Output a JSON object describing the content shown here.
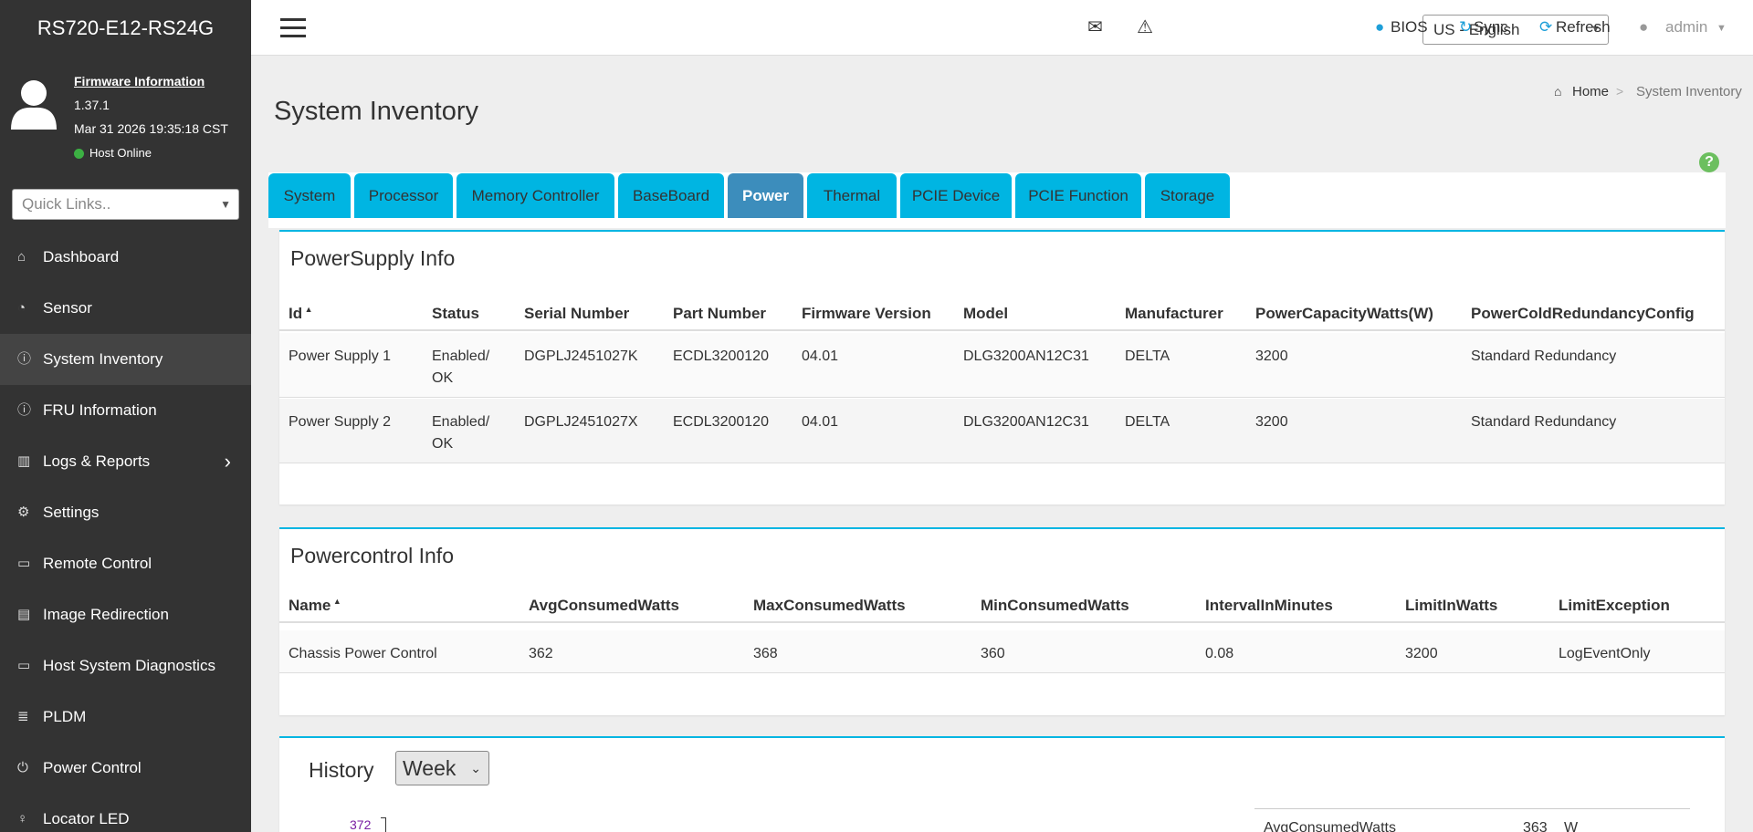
{
  "sidebar": {
    "brand": "RS720-E12-RS24G",
    "firmware_link": "Firmware Information",
    "firmware_version": "1.37.1",
    "datetime": "Mar 31 2026 19:35:18 CST",
    "host_status": "Host Online",
    "quick_links": "Quick Links..",
    "menu": [
      "Dashboard",
      "Sensor",
      "System Inventory",
      "FRU Information",
      "Logs & Reports",
      "Settings",
      "Remote Control",
      "Image Redirection",
      "Host System Diagnostics",
      "PLDM",
      "Power Control",
      "Locator LED"
    ]
  },
  "topbar": {
    "language": "US - English",
    "bios": "BIOS",
    "sync": "Sync",
    "refresh": "Refresh",
    "user": "admin"
  },
  "breadcrumb": {
    "home": "Home",
    "separator": ">",
    "current": "System Inventory"
  },
  "page_title": "System Inventory",
  "tabs": [
    "System",
    "Processor",
    "Memory Controller",
    "BaseBoard",
    "Power",
    "Thermal",
    "PCIE Device",
    "PCIE Function",
    "Storage"
  ],
  "powersupply": {
    "title": "PowerSupply Info",
    "columns": [
      "Id",
      "Status",
      "Serial Number",
      "Part Number",
      "Firmware Version",
      "Model",
      "Manufacturer",
      "PowerCapacityWatts(W)",
      "PowerColdRedundancyConfig"
    ],
    "rows": [
      [
        "Power Supply 1",
        "Enabled/ OK",
        "DGPLJ2451027K",
        "ECDL3200120",
        "04.01",
        "DLG3200AN12C31",
        "DELTA",
        "3200",
        "Standard Redundancy"
      ],
      [
        "Power Supply 2",
        "Enabled/ OK",
        "DGPLJ2451027X",
        "ECDL3200120",
        "04.01",
        "DLG3200AN12C31",
        "DELTA",
        "3200",
        "Standard Redundancy"
      ]
    ]
  },
  "powercontrol": {
    "title": "Powercontrol Info",
    "columns": [
      "Name",
      "AvgConsumedWatts",
      "MaxConsumedWatts",
      "MinConsumedWatts",
      "IntervalInMinutes",
      "LimitInWatts",
      "LimitException"
    ],
    "rows": [
      [
        "Chassis Power Control",
        "362",
        "368",
        "360",
        "0.08",
        "3200",
        "LogEventOnly"
      ]
    ]
  },
  "history": {
    "title": "History",
    "range": "Week",
    "y_tick": "372",
    "legend": {
      "label": "AvgConsumedWatts",
      "value": "363",
      "unit": "W"
    }
  }
}
